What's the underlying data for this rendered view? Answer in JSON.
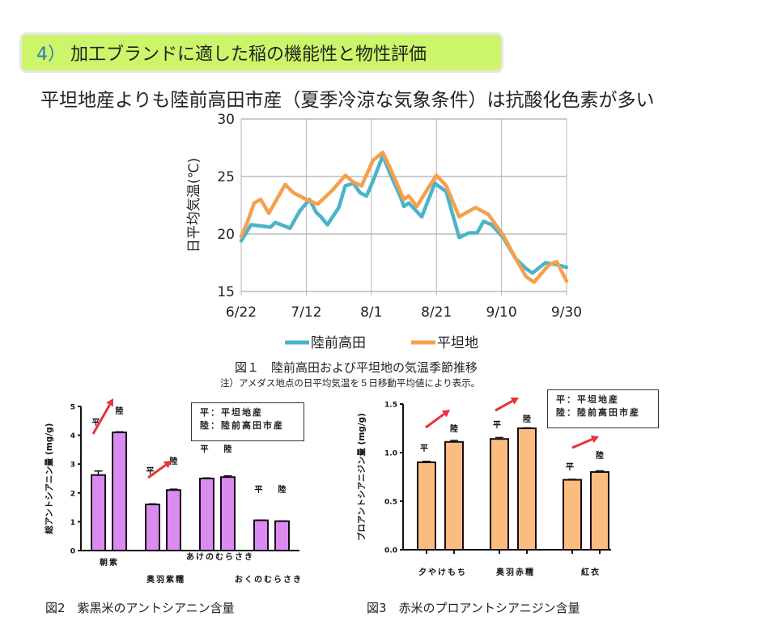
{
  "header": {
    "section_number": "4）",
    "section_title": "加工ブランドに適した稲の機能性と物性評価",
    "headline": "平坦地産よりも陸前高田市産（夏季冷涼な気象条件）は抗酸化色素が多い"
  },
  "colors": {
    "title_bg": "#ccf56a",
    "rikuzen": "#4bb4c9",
    "heitan": "#f5a04d",
    "purple_bar": "#d98bf0",
    "orange_bar": "#fbbd7f",
    "arrow": "#e8333a"
  },
  "chart_data": [
    {
      "id": "fig1",
      "type": "line",
      "title": "図１　陸前高田および平坦地の気温季節推移",
      "note": "注）アメダス地点の日平均気温を５日移動平均値により表示。",
      "ylabel": "日平均気温(℃)",
      "xlabel": "",
      "x_unit": "days since 6/22",
      "xlim": [
        0,
        100
      ],
      "ylim": [
        15,
        30
      ],
      "yticks": [
        15,
        20,
        25,
        30
      ],
      "xticks": [
        {
          "value": 0,
          "label": "6/22"
        },
        {
          "value": 20,
          "label": "7/12"
        },
        {
          "value": 40,
          "label": "8/1"
        },
        {
          "value": 60,
          "label": "8/21"
        },
        {
          "value": 80,
          "label": "9/10"
        },
        {
          "value": 100,
          "label": "9/30"
        }
      ],
      "grid": true,
      "legend_position": "bottom",
      "series": [
        {
          "name": "陸前高田",
          "color": "#4bb4c9",
          "points": [
            [
              0,
              19.4
            ],
            [
              3,
              20.8
            ],
            [
              9,
              20.6
            ],
            [
              10.5,
              21.0
            ],
            [
              15,
              20.5
            ],
            [
              18,
              22.0
            ],
            [
              21,
              23.0
            ],
            [
              23,
              21.9
            ],
            [
              24.5,
              21.5
            ],
            [
              26.5,
              20.8
            ],
            [
              30,
              22.3
            ],
            [
              32,
              24.2
            ],
            [
              34.5,
              24.4
            ],
            [
              36.5,
              23.6
            ],
            [
              38.5,
              23.3
            ],
            [
              40.5,
              24.6
            ],
            [
              43.5,
              26.8
            ],
            [
              46,
              25.1
            ],
            [
              49,
              23.2
            ],
            [
              50,
              22.4
            ],
            [
              51.5,
              22.7
            ],
            [
              55.5,
              21.5
            ],
            [
              59.5,
              24.4
            ],
            [
              63,
              23.7
            ],
            [
              67,
              19.7
            ],
            [
              70,
              20.1
            ],
            [
              72.5,
              20.1
            ],
            [
              74.5,
              21.1
            ],
            [
              77,
              20.8
            ],
            [
              80.5,
              19.7
            ],
            [
              84.5,
              17.8
            ],
            [
              87.5,
              17.0
            ],
            [
              89.5,
              16.6
            ],
            [
              93.5,
              17.5
            ],
            [
              97.5,
              17.3
            ],
            [
              100,
              17.1
            ]
          ]
        },
        {
          "name": "平坦地",
          "color": "#f5a04d",
          "points": [
            [
              0,
              19.8
            ],
            [
              2,
              21.1
            ],
            [
              4,
              22.7
            ],
            [
              6,
              23.0
            ],
            [
              8.5,
              21.8
            ],
            [
              13.5,
              24.3
            ],
            [
              16,
              23.6
            ],
            [
              20,
              23.0
            ],
            [
              23.5,
              22.6
            ],
            [
              28,
              23.8
            ],
            [
              32,
              25.1
            ],
            [
              34.5,
              24.5
            ],
            [
              37,
              24.2
            ],
            [
              40.5,
              26.4
            ],
            [
              43.5,
              27.1
            ],
            [
              46,
              25.6
            ],
            [
              50,
              23.0
            ],
            [
              51.5,
              23.3
            ],
            [
              54,
              22.4
            ],
            [
              57.5,
              24.0
            ],
            [
              60,
              25.1
            ],
            [
              63,
              24.2
            ],
            [
              67,
              21.5
            ],
            [
              72,
              22.3
            ],
            [
              76,
              21.7
            ],
            [
              80.5,
              19.9
            ],
            [
              84.5,
              17.8
            ],
            [
              87.5,
              16.3
            ],
            [
              90,
              15.8
            ],
            [
              94.5,
              17.3
            ],
            [
              97,
              17.6
            ],
            [
              100,
              15.9
            ]
          ]
        }
      ]
    },
    {
      "id": "fig2",
      "type": "bar",
      "title": "図2　紫黒米のアントシアニン含量",
      "ylabel": "総アントシアニン量 (mg/g)",
      "ylim": [
        0,
        5
      ],
      "yticks": [
        "0",
        "1",
        "2",
        "3",
        "4",
        "5"
      ],
      "legend_lines": [
        "平：平坦地産",
        "陸：陸前高田市産"
      ],
      "legend_position": "top-right",
      "bar_labels": [
        "平",
        "陸"
      ],
      "categories": [
        "朝紫",
        "奥羽紫糯",
        "あけのむらさき",
        "おくのむらさき"
      ],
      "series": [
        {
          "name": "平坦地産",
          "values": [
            2.62,
            1.6,
            2.5,
            1.05
          ],
          "errors": [
            0.14,
            0.02,
            0.02,
            0.01
          ]
        },
        {
          "name": "陸前高田市産",
          "values": [
            4.1,
            2.1,
            2.55,
            1.02
          ],
          "errors": [
            0.02,
            0.03,
            0.04,
            0.01
          ]
        }
      ],
      "arrows_on": [
        "朝紫",
        "奥羽紫糯"
      ]
    },
    {
      "id": "fig3",
      "type": "bar",
      "title": "図3　赤米のプロアントシアニジン含量",
      "ylabel": "プロアントシアニジン量 (mg/g)",
      "ylim": [
        0,
        1.5
      ],
      "yticks": [
        "0.0",
        "0.5",
        "1.0",
        "1.5"
      ],
      "legend_lines": [
        "平：平坦地産",
        "陸：陸前高田市産"
      ],
      "legend_position": "top-right",
      "bar_labels": [
        "平",
        "陸"
      ],
      "categories": [
        "夕やけもち",
        "奥羽赤糯",
        "紅衣"
      ],
      "series": [
        {
          "name": "平坦地産",
          "values": [
            0.9,
            1.14,
            0.72
          ],
          "errors": [
            0.01,
            0.015,
            0.005
          ]
        },
        {
          "name": "陸前高田市産",
          "values": [
            1.11,
            1.25,
            0.8
          ],
          "errors": [
            0.015,
            0.005,
            0.012
          ]
        }
      ],
      "arrows_on": [
        "夕やけもち",
        "奥羽赤糯",
        "紅衣"
      ]
    }
  ]
}
